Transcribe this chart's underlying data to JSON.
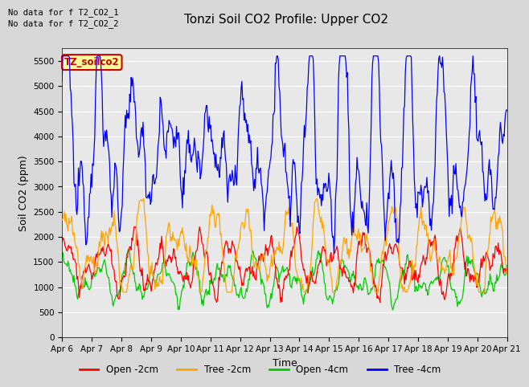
{
  "title": "Tonzi Soil CO2 Profile: Upper CO2",
  "xlabel": "Time",
  "ylabel": "Soil CO2 (ppm)",
  "ylim": [
    0,
    5750
  ],
  "yticks": [
    0,
    500,
    1000,
    1500,
    2000,
    2500,
    3000,
    3500,
    4000,
    4500,
    5000,
    5500
  ],
  "background_color": "#d8d8d8",
  "plot_bg_color": "#e8e8e8",
  "no_data_text1": "No data for f T2_CO2_1",
  "no_data_text2": "No data for f T2_CO2_2",
  "legend_label": "TZ_soilco2",
  "legend_entries": [
    "Open -2cm",
    "Tree -2cm",
    "Open -4cm",
    "Tree -4cm"
  ],
  "legend_colors": [
    "#ff0000",
    "#ffa500",
    "#00cc00",
    "#0000ff"
  ],
  "line_colors": {
    "open_2cm": "#ff0000",
    "tree_2cm": "#ffa500",
    "open_4cm": "#00cc00",
    "tree_4cm": "#0000ff"
  },
  "xend": 15,
  "n_points": 600,
  "date_labels": [
    "Apr 6",
    "Apr 7",
    "Apr 8",
    "Apr 9",
    "Apr 10",
    "Apr 11",
    "Apr 12",
    "Apr 13",
    "Apr 14",
    "Apr 15",
    "Apr 16",
    "Apr 17",
    "Apr 18",
    "Apr 19",
    "Apr 20",
    "Apr 21"
  ],
  "grid_color": "#ffffff",
  "title_fontsize": 11,
  "axis_fontsize": 9,
  "tick_fontsize": 7.5
}
